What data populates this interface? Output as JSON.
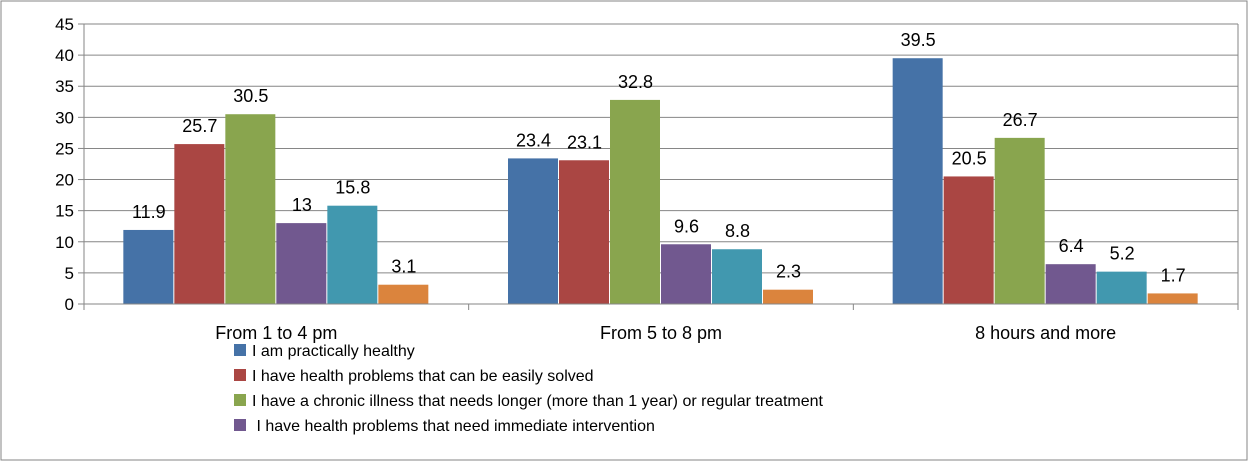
{
  "chart_data": {
    "type": "bar",
    "categories": [
      "From 1 to 4 pm",
      "From 5 to 8 pm",
      "8 hours and more"
    ],
    "series": [
      {
        "name": "I am practically healthy",
        "color": "#4572A7",
        "values": [
          11.9,
          23.4,
          39.5
        ],
        "labels": [
          "11.9",
          "23.4",
          "39.5"
        ]
      },
      {
        "name": "I have health problems that can be easily solved",
        "color": "#AA4643",
        "values": [
          25.7,
          23.1,
          20.5
        ],
        "labels": [
          "25.7",
          "23.1",
          "20.5"
        ]
      },
      {
        "name": "I have a chronic illness that needs longer (more than 1 year) or regular treatment",
        "color": "#89A54E",
        "values": [
          30.5,
          32.8,
          26.7
        ],
        "labels": [
          "30.5",
          "32.8",
          "26.7"
        ]
      },
      {
        "name": " I have health problems that need immediate intervention",
        "color": "#71588F",
        "values": [
          13,
          9.6,
          6.4
        ],
        "labels": [
          "13",
          "9.6",
          "6.4"
        ]
      },
      {
        "name": "",
        "color": "#4198AF",
        "values": [
          15.8,
          8.8,
          5.2
        ],
        "labels": [
          "15.8",
          "8.8",
          "5.2"
        ]
      },
      {
        "name": "",
        "color": "#DB843D",
        "values": [
          3.1,
          2.3,
          1.7
        ],
        "labels": [
          "3.1",
          "2.3",
          "1.7"
        ]
      }
    ],
    "yticks": [
      "0",
      "5",
      "10",
      "15",
      "20",
      "25",
      "30",
      "35",
      "40",
      "45"
    ],
    "ylim": [
      0,
      45
    ],
    "grid": true,
    "legend": "bottom",
    "title": "",
    "xlabel": "",
    "ylabel": ""
  }
}
